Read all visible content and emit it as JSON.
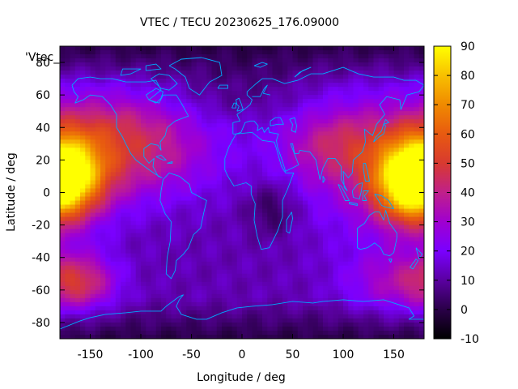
{
  "chart_data": {
    "type": "heatmap",
    "title": "VTEC / TECU 20230625_176.09000",
    "key_text": "'Vtec_",
    "xlabel": "Longitude / deg",
    "ylabel": "Latitude / deg",
    "xlim": [
      -180,
      180
    ],
    "ylim": [
      -90,
      90
    ],
    "x_ticks": [
      -150,
      -100,
      -50,
      0,
      50,
      100,
      150
    ],
    "y_ticks": [
      -80,
      -60,
      -40,
      -20,
      0,
      20,
      40,
      60,
      80
    ],
    "colorbar": {
      "range": [
        -10,
        90
      ],
      "ticks": [
        -10,
        0,
        10,
        20,
        30,
        40,
        50,
        60,
        70,
        80,
        90
      ],
      "palette": [
        "#000000",
        "#2a0048",
        "#5a00a0",
        "#7a00ff",
        "#a000d0",
        "#c0208a",
        "#d83a30",
        "#e85a10",
        "#f08a00",
        "#f8c000",
        "#ffff00"
      ]
    },
    "coastline_color": "#00aaff",
    "grid": false
  }
}
